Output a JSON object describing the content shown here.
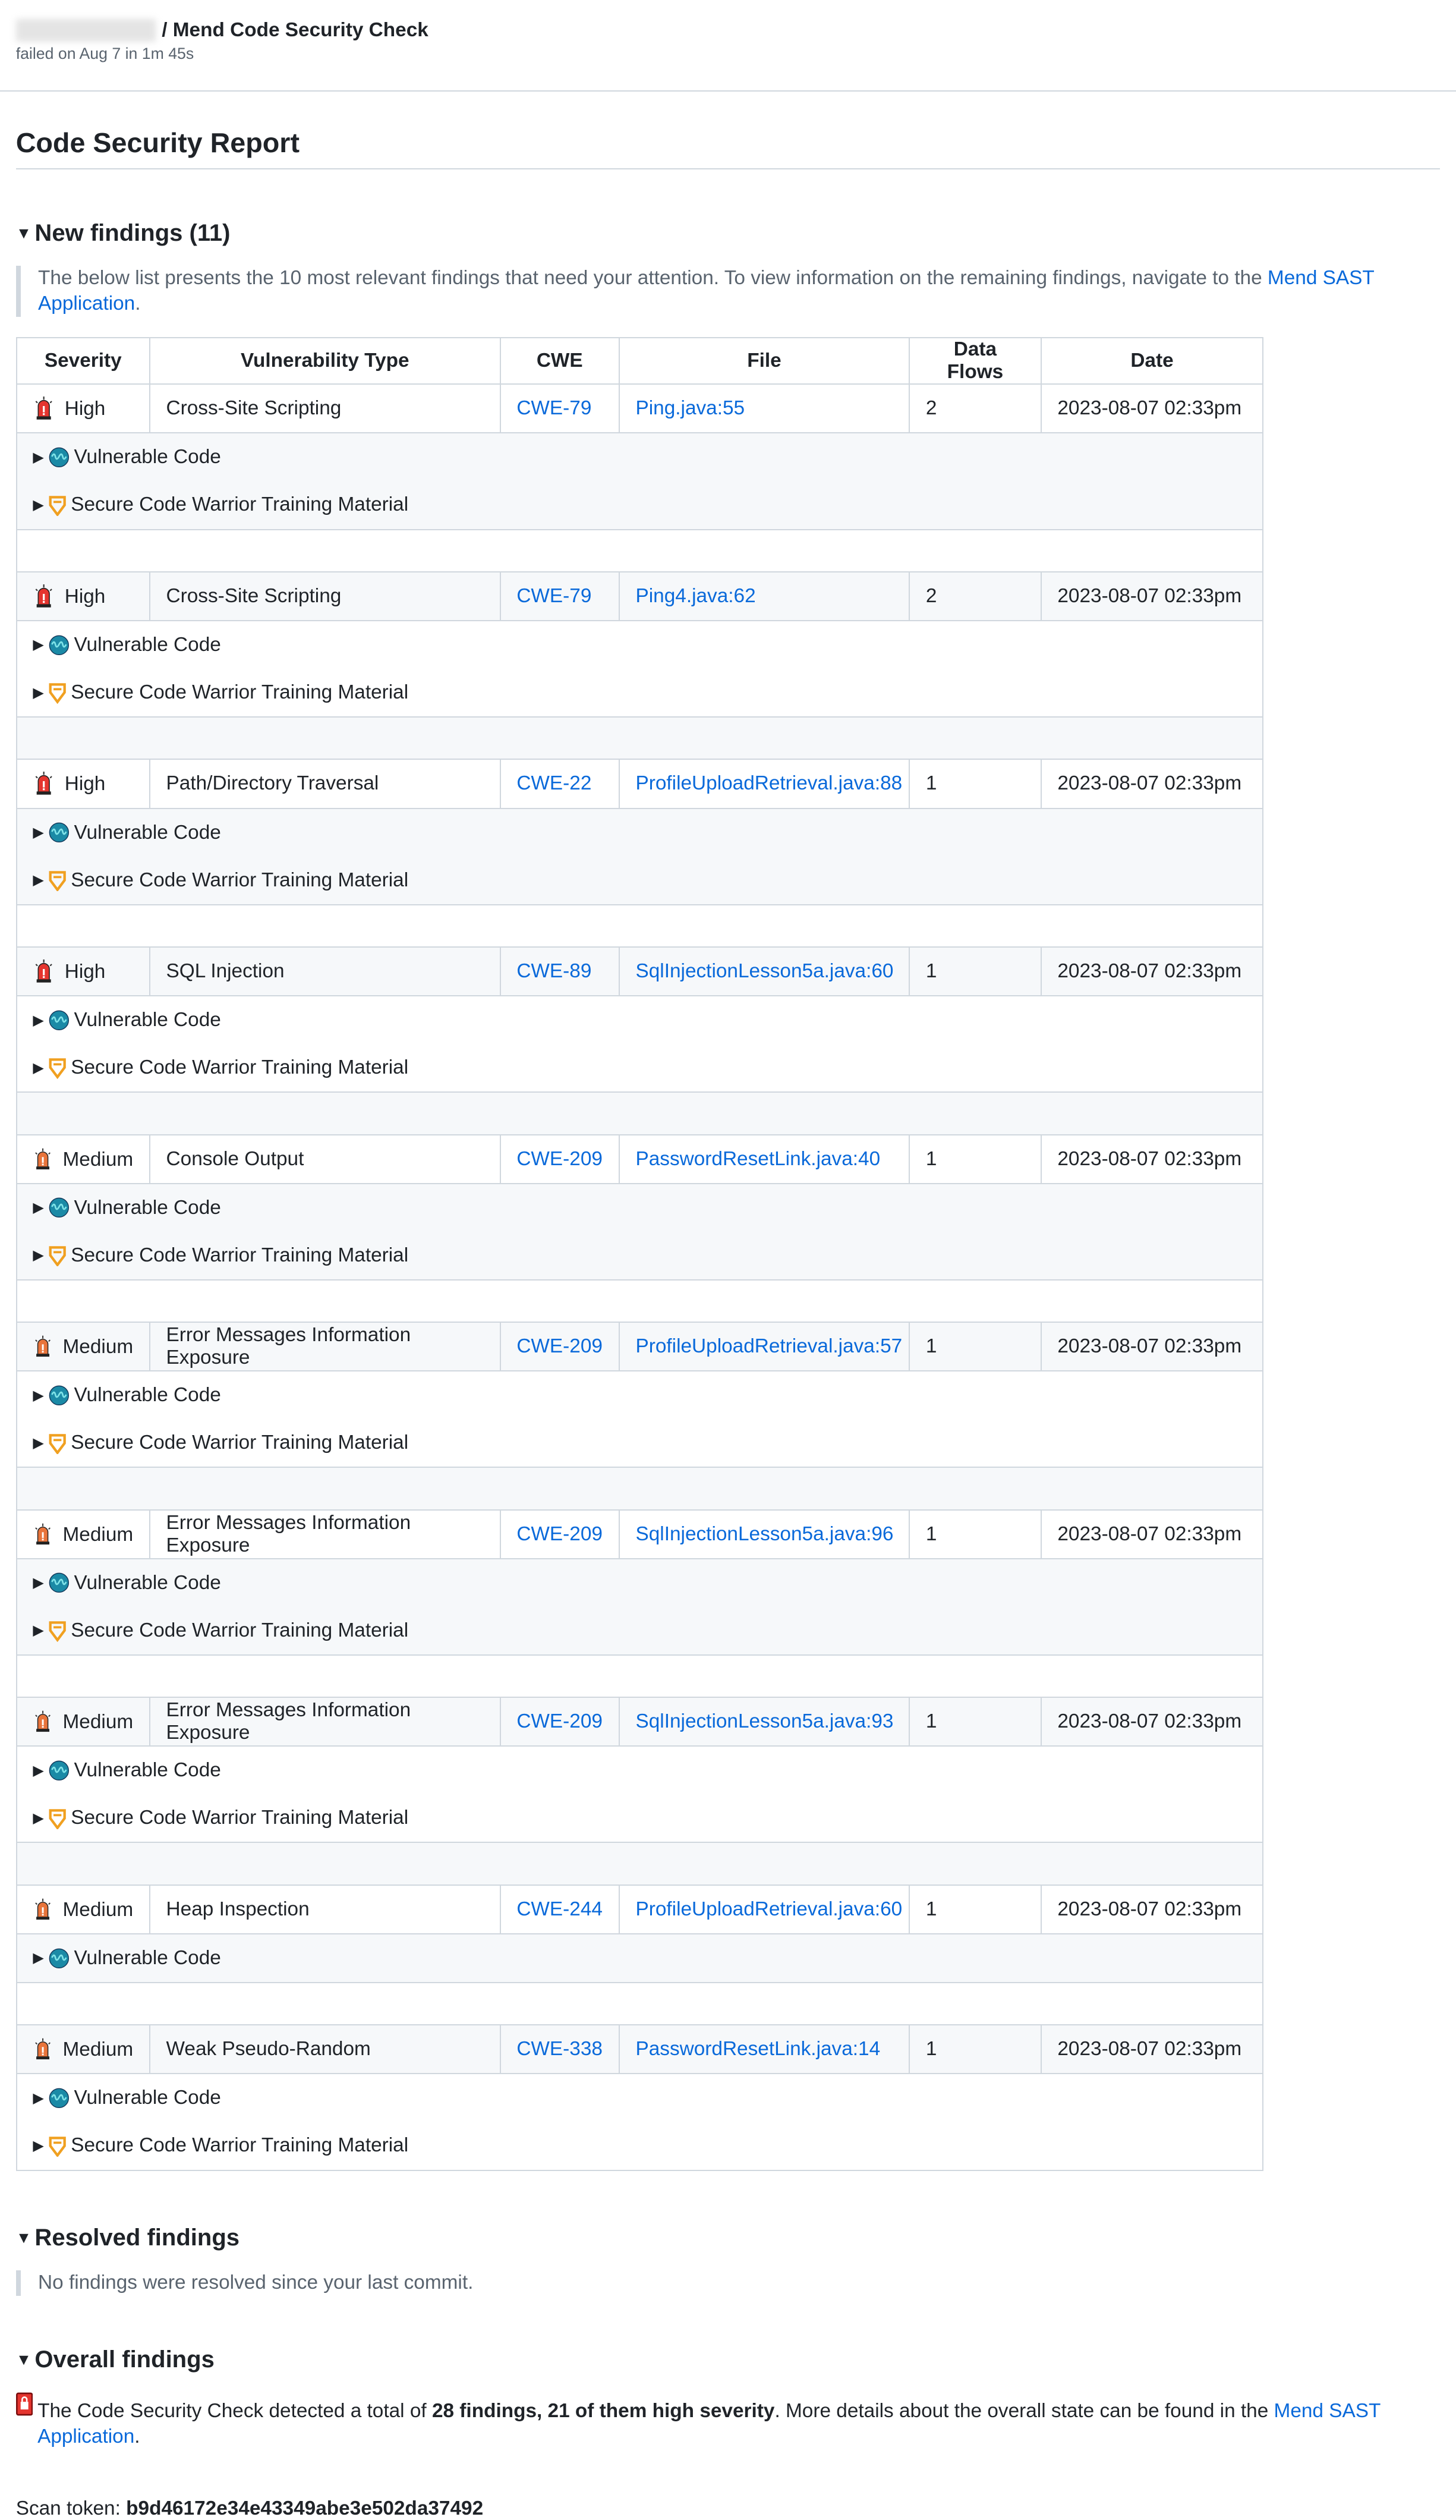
{
  "header": {
    "title": "/ Mend Code Security Check",
    "subtitle": "failed on Aug 7 in 1m 45s"
  },
  "report_title": "Code Security Report",
  "new_findings": {
    "heading": "New findings (11)",
    "note": "The below list presents the 10 most relevant findings that need your attention. To view information on the remaining findings, navigate to the ",
    "note_link": "Mend SAST Application",
    "note_end": ".",
    "columns": [
      "Severity",
      "Vulnerability Type",
      "CWE",
      "File",
      "Data Flows",
      "Date"
    ],
    "vuln_label": "Vulnerable Code",
    "training_label": "Secure Code Warrior Training Material",
    "rows": [
      {
        "severity": "High",
        "type": "Cross-Site Scripting",
        "cwe": "CWE-79",
        "file": "Ping.java:55",
        "flows": "2",
        "date": "2023-08-07 02:33pm",
        "training": true
      },
      {
        "severity": "High",
        "type": "Cross-Site Scripting",
        "cwe": "CWE-79",
        "file": "Ping4.java:62",
        "flows": "2",
        "date": "2023-08-07 02:33pm",
        "training": true
      },
      {
        "severity": "High",
        "type": "Path/Directory Traversal",
        "cwe": "CWE-22",
        "file": "ProfileUploadRetrieval.java:88",
        "flows": "1",
        "date": "2023-08-07 02:33pm",
        "training": true
      },
      {
        "severity": "High",
        "type": "SQL Injection",
        "cwe": "CWE-89",
        "file": "SqlInjectionLesson5a.java:60",
        "flows": "1",
        "date": "2023-08-07 02:33pm",
        "training": true
      },
      {
        "severity": "Medium",
        "type": "Console Output",
        "cwe": "CWE-209",
        "file": "PasswordResetLink.java:40",
        "flows": "1",
        "date": "2023-08-07 02:33pm",
        "training": true
      },
      {
        "severity": "Medium",
        "type": "Error Messages Information Exposure",
        "cwe": "CWE-209",
        "file": "ProfileUploadRetrieval.java:57",
        "flows": "1",
        "date": "2023-08-07 02:33pm",
        "training": true
      },
      {
        "severity": "Medium",
        "type": "Error Messages Information Exposure",
        "cwe": "CWE-209",
        "file": "SqlInjectionLesson5a.java:96",
        "flows": "1",
        "date": "2023-08-07 02:33pm",
        "training": true
      },
      {
        "severity": "Medium",
        "type": "Error Messages Information Exposure",
        "cwe": "CWE-209",
        "file": "SqlInjectionLesson5a.java:93",
        "flows": "1",
        "date": "2023-08-07 02:33pm",
        "training": true
      },
      {
        "severity": "Medium",
        "type": "Heap Inspection",
        "cwe": "CWE-244",
        "file": "ProfileUploadRetrieval.java:60",
        "flows": "1",
        "date": "2023-08-07 02:33pm",
        "training": false
      },
      {
        "severity": "Medium",
        "type": "Weak Pseudo-Random",
        "cwe": "CWE-338",
        "file": "PasswordResetLink.java:14",
        "flows": "1",
        "date": "2023-08-07 02:33pm",
        "training": true
      }
    ]
  },
  "resolved": {
    "heading": "Resolved findings",
    "note": "No findings were resolved since your last commit."
  },
  "overall": {
    "heading": "Overall findings",
    "text1": "The Code Security Check detected a total of ",
    "bold": "28 findings, 21 of them high severity",
    "text2": ". More details about the overall state can be found in the ",
    "link": "Mend SAST Application",
    "end": "."
  },
  "scan_token": {
    "label": "Scan token: ",
    "value": "b9d46172e34e43349abe3e502da37492"
  },
  "colors": {
    "link": "#0969da",
    "high": "#e5352f",
    "medium": "#e8743b",
    "vuln_icon": "#1b8aa6",
    "training_icon": "#f0a020"
  }
}
